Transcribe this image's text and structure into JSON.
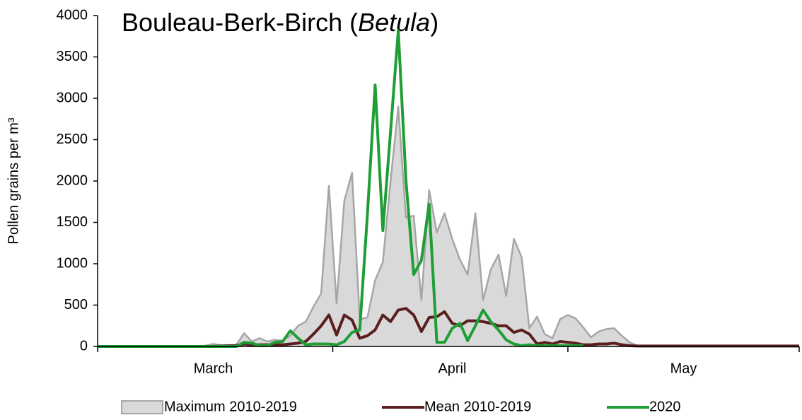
{
  "chart_data": {
    "type": "line",
    "title": [
      "Bouleau-Berk-Birch (",
      "Betula",
      ")"
    ],
    "y_label": "Pollen grains per m³",
    "categories": [
      null,
      null,
      null,
      null,
      null,
      null,
      null,
      null,
      null,
      null,
      null,
      null,
      null,
      null,
      null,
      "March",
      null,
      null,
      null,
      null,
      null,
      null,
      null,
      null,
      null,
      null,
      null,
      null,
      null,
      null,
      null,
      null,
      null,
      null,
      null,
      null,
      null,
      null,
      null,
      null,
      null,
      null,
      null,
      null,
      null,
      null,
      "April",
      null,
      null,
      null,
      null,
      null,
      null,
      null,
      null,
      null,
      null,
      null,
      null,
      null,
      null,
      null,
      null,
      null,
      null,
      null,
      null,
      null,
      null,
      null,
      null,
      null,
      null,
      null,
      null,
      null,
      "May",
      null,
      null,
      null,
      null,
      null,
      null,
      null,
      null,
      null,
      null,
      null,
      null,
      null,
      null,
      null
    ],
    "ylim": [
      0,
      4000
    ],
    "yticks": [
      0,
      500,
      1000,
      1500,
      2000,
      2500,
      3000,
      3500,
      4000
    ],
    "legend": "bottom",
    "series": [
      {
        "name": "Maximum 2010-2019",
        "style": "area",
        "color": "#d9d9d9",
        "edge_color": "#a6a6a6",
        "values": [
          0,
          0,
          0,
          0,
          0,
          0,
          0,
          0,
          0,
          0,
          0,
          0,
          0,
          5,
          10,
          30,
          15,
          10,
          20,
          160,
          60,
          100,
          60,
          80,
          70,
          130,
          250,
          300,
          480,
          640,
          1940,
          520,
          1760,
          2100,
          330,
          350,
          800,
          1020,
          2000,
          2900,
          1560,
          1580,
          560,
          1890,
          1380,
          1610,
          1300,
          1050,
          870,
          1610,
          560,
          930,
          1110,
          610,
          1300,
          1080,
          220,
          360,
          150,
          100,
          330,
          380,
          340,
          230,
          110,
          180,
          210,
          220,
          130,
          50,
          10,
          0,
          0,
          0,
          0,
          0,
          0,
          0,
          0,
          0,
          0,
          0,
          0,
          0,
          0,
          0,
          0,
          0,
          0,
          0,
          0,
          0
        ]
      },
      {
        "name": "Mean 2010-2019",
        "style": "line",
        "color": "#5a1e1e",
        "values": [
          0,
          0,
          0,
          0,
          0,
          0,
          0,
          0,
          0,
          0,
          0,
          0,
          0,
          0,
          0,
          0,
          5,
          10,
          10,
          30,
          20,
          20,
          20,
          20,
          20,
          30,
          40,
          60,
          150,
          250,
          380,
          140,
          380,
          320,
          100,
          130,
          200,
          380,
          300,
          440,
          460,
          380,
          180,
          350,
          360,
          420,
          280,
          250,
          310,
          310,
          300,
          280,
          250,
          250,
          170,
          200,
          150,
          30,
          50,
          30,
          60,
          50,
          40,
          20,
          20,
          30,
          30,
          40,
          20,
          10,
          5,
          5,
          5,
          5,
          5,
          5,
          5,
          5,
          5,
          5,
          5,
          5,
          5,
          5,
          5,
          5,
          5,
          5,
          5,
          5,
          5,
          5
        ]
      },
      {
        "name": "2020",
        "style": "line",
        "color": "#1f9e35",
        "values": [
          0,
          0,
          0,
          0,
          0,
          0,
          0,
          0,
          0,
          0,
          0,
          0,
          0,
          0,
          0,
          0,
          0,
          0,
          0,
          50,
          40,
          10,
          10,
          50,
          60,
          190,
          100,
          20,
          30,
          30,
          30,
          20,
          60,
          170,
          200,
          1600,
          3160,
          1400,
          2600,
          3820,
          2000,
          870,
          1040,
          1720,
          50,
          50,
          220,
          280,
          70,
          250,
          440,
          300,
          200,
          80,
          30,
          10,
          20,
          10,
          10,
          10,
          10,
          10,
          10,
          10,
          null,
          null,
          null,
          null,
          null,
          null,
          null,
          null,
          null,
          null,
          null,
          null,
          null,
          null,
          null,
          null,
          null,
          null,
          null,
          null,
          null,
          null,
          null,
          null,
          null,
          null,
          null,
          null
        ]
      }
    ]
  }
}
